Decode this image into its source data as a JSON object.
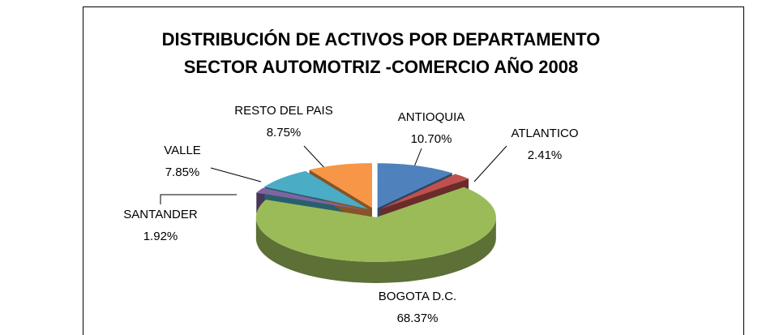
{
  "chart_data": {
    "type": "pie3d",
    "title": [
      "DISTRIBUCIÓN DE ACTIVOS POR DEPARTAMENTO",
      "SECTOR AUTOMOTRIZ -COMERCIO AÑO 2008"
    ],
    "categories": [
      "ANTIOQUIA",
      "ATLANTICO",
      "BOGOTA D.C.",
      "SANTANDER",
      "VALLE",
      "RESTO DEL PAIS"
    ],
    "values": [
      10.7,
      2.41,
      68.37,
      1.92,
      7.85,
      8.75
    ],
    "value_labels": [
      "10.70%",
      "2.41%",
      "68.37%",
      "1.92%",
      "7.85%",
      "8.75%"
    ],
    "colors": [
      "#4f81bd",
      "#c0504d",
      "#9bbb59",
      "#8064a2",
      "#4bacc6",
      "#f79646"
    ]
  }
}
